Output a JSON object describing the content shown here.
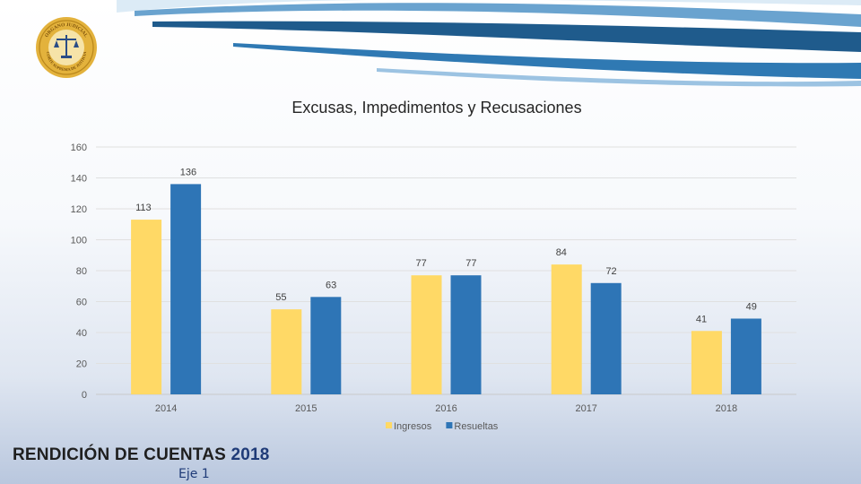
{
  "colors": {
    "ingresos": "#ffd966",
    "resueltas": "#2e75b6",
    "swoosh_dark": "#1f5b8c",
    "swoosh_light": "#cfe3f2",
    "seal_gold": "#d9a520",
    "footer_dark": "#1f1f1f",
    "footer_blue": "#1f3b78"
  },
  "header": {
    "logo": {
      "icon": "court-seal-icon",
      "text": "ORGANO JUDICIAL CORTE SUPREMA DE JUSTICIA"
    }
  },
  "chart_data": {
    "type": "bar",
    "title": "Excusas, Impedimentos y Recusaciones",
    "xlabel": "",
    "ylabel": "",
    "categories": [
      "2014",
      "2015",
      "2016",
      "2017",
      "2018"
    ],
    "series": [
      {
        "name": "Ingresos",
        "values": [
          113,
          55,
          77,
          84,
          41
        ]
      },
      {
        "name": "Resueltas",
        "values": [
          136,
          63,
          77,
          72,
          49
        ]
      }
    ],
    "ylim": [
      0,
      160
    ],
    "yticks": [
      0,
      20,
      40,
      60,
      80,
      100,
      120,
      140,
      160
    ],
    "grid": true,
    "legend": "bottom",
    "data_labels": true
  },
  "footer": {
    "title_part1": "RENDICIÓN DE CUENTAS",
    "title_part2": "2018",
    "subtitle": "Eje 1"
  }
}
